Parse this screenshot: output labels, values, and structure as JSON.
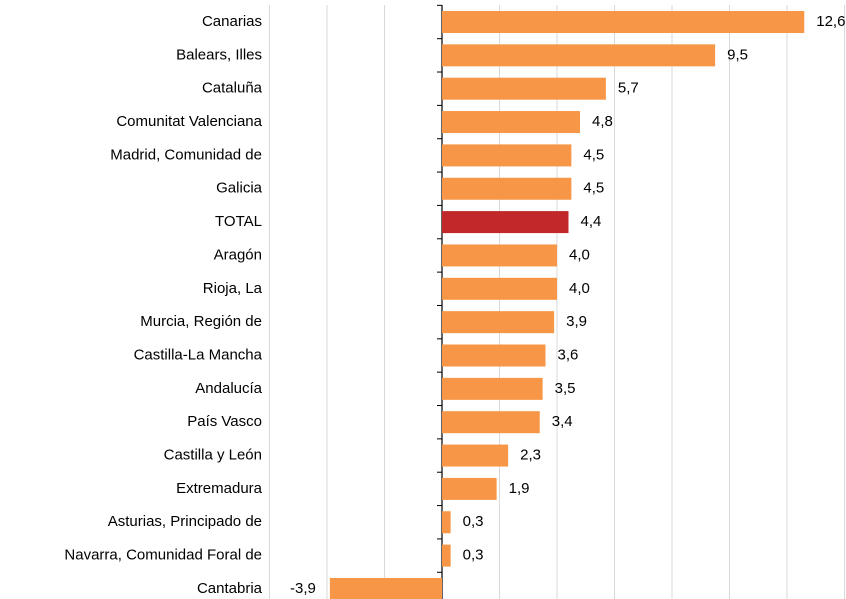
{
  "chart_data": {
    "type": "bar",
    "orientation": "horizontal",
    "categories": [
      "Canarias",
      "Balears, Illes",
      "Cataluña",
      "Comunitat Valenciana",
      "Madrid, Comunidad de",
      "Galicia",
      "TOTAL",
      "Aragón",
      "Rioja, La",
      "Murcia, Región de",
      "Castilla-La Mancha",
      "Andalucía",
      "País Vasco",
      "Castilla y León",
      "Extremadura",
      "Asturias, Principado de",
      "Navarra, Comunidad Foral de",
      "Cantabria"
    ],
    "values": [
      12.6,
      9.5,
      5.7,
      4.8,
      4.5,
      4.5,
      4.4,
      4.0,
      4.0,
      3.9,
      3.6,
      3.5,
      3.4,
      2.3,
      1.9,
      0.3,
      0.3,
      -3.9
    ],
    "value_labels": [
      "12,6",
      "9,5",
      "5,7",
      "4,8",
      "4,5",
      "4,5",
      "4,4",
      "4,0",
      "4,0",
      "3,9",
      "3,6",
      "3,5",
      "3,4",
      "2,3",
      "1,9",
      "0,3",
      "0,3",
      "-3,9"
    ],
    "colors": [
      "#f79646",
      "#f79646",
      "#f79646",
      "#f79646",
      "#f79646",
      "#f79646",
      "#c0282a",
      "#f79646",
      "#f79646",
      "#f79646",
      "#f79646",
      "#f79646",
      "#f79646",
      "#f79646",
      "#f79646",
      "#f79646",
      "#f79646",
      "#f79646"
    ],
    "xlim": [
      -6,
      14
    ],
    "xticks": [
      -6,
      -4,
      -2,
      0,
      2,
      4,
      6,
      8,
      10,
      12,
      14
    ],
    "grid": true
  }
}
